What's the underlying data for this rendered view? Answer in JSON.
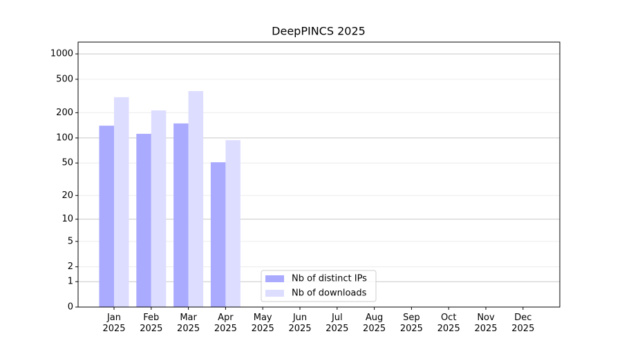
{
  "chart_data": {
    "type": "bar",
    "title": "DeepPINCS 2025",
    "categories": [
      "Jan\n2025",
      "Feb\n2025",
      "Mar\n2025",
      "Apr\n2025",
      "May\n2025",
      "Jun\n2025",
      "Jul\n2025",
      "Aug\n2025",
      "Sep\n2025",
      "Oct\n2025",
      "Nov\n2025",
      "Dec\n2025"
    ],
    "series": [
      {
        "name": "Nb of distinct IPs",
        "color": "#aaaaff",
        "values": [
          140,
          112,
          149,
          51,
          null,
          null,
          null,
          null,
          null,
          null,
          null,
          null
        ]
      },
      {
        "name": "Nb of downloads",
        "color": "#ddddff",
        "values": [
          306,
          213,
          362,
          94,
          null,
          null,
          null,
          null,
          null,
          null,
          null,
          null
        ]
      }
    ],
    "yscale": "log1p",
    "ylim": [
      0,
      1380
    ],
    "yticks": [
      0,
      1,
      2,
      5,
      10,
      20,
      50,
      100,
      200,
      500,
      1000
    ],
    "grid": true,
    "legend": "lower center"
  }
}
